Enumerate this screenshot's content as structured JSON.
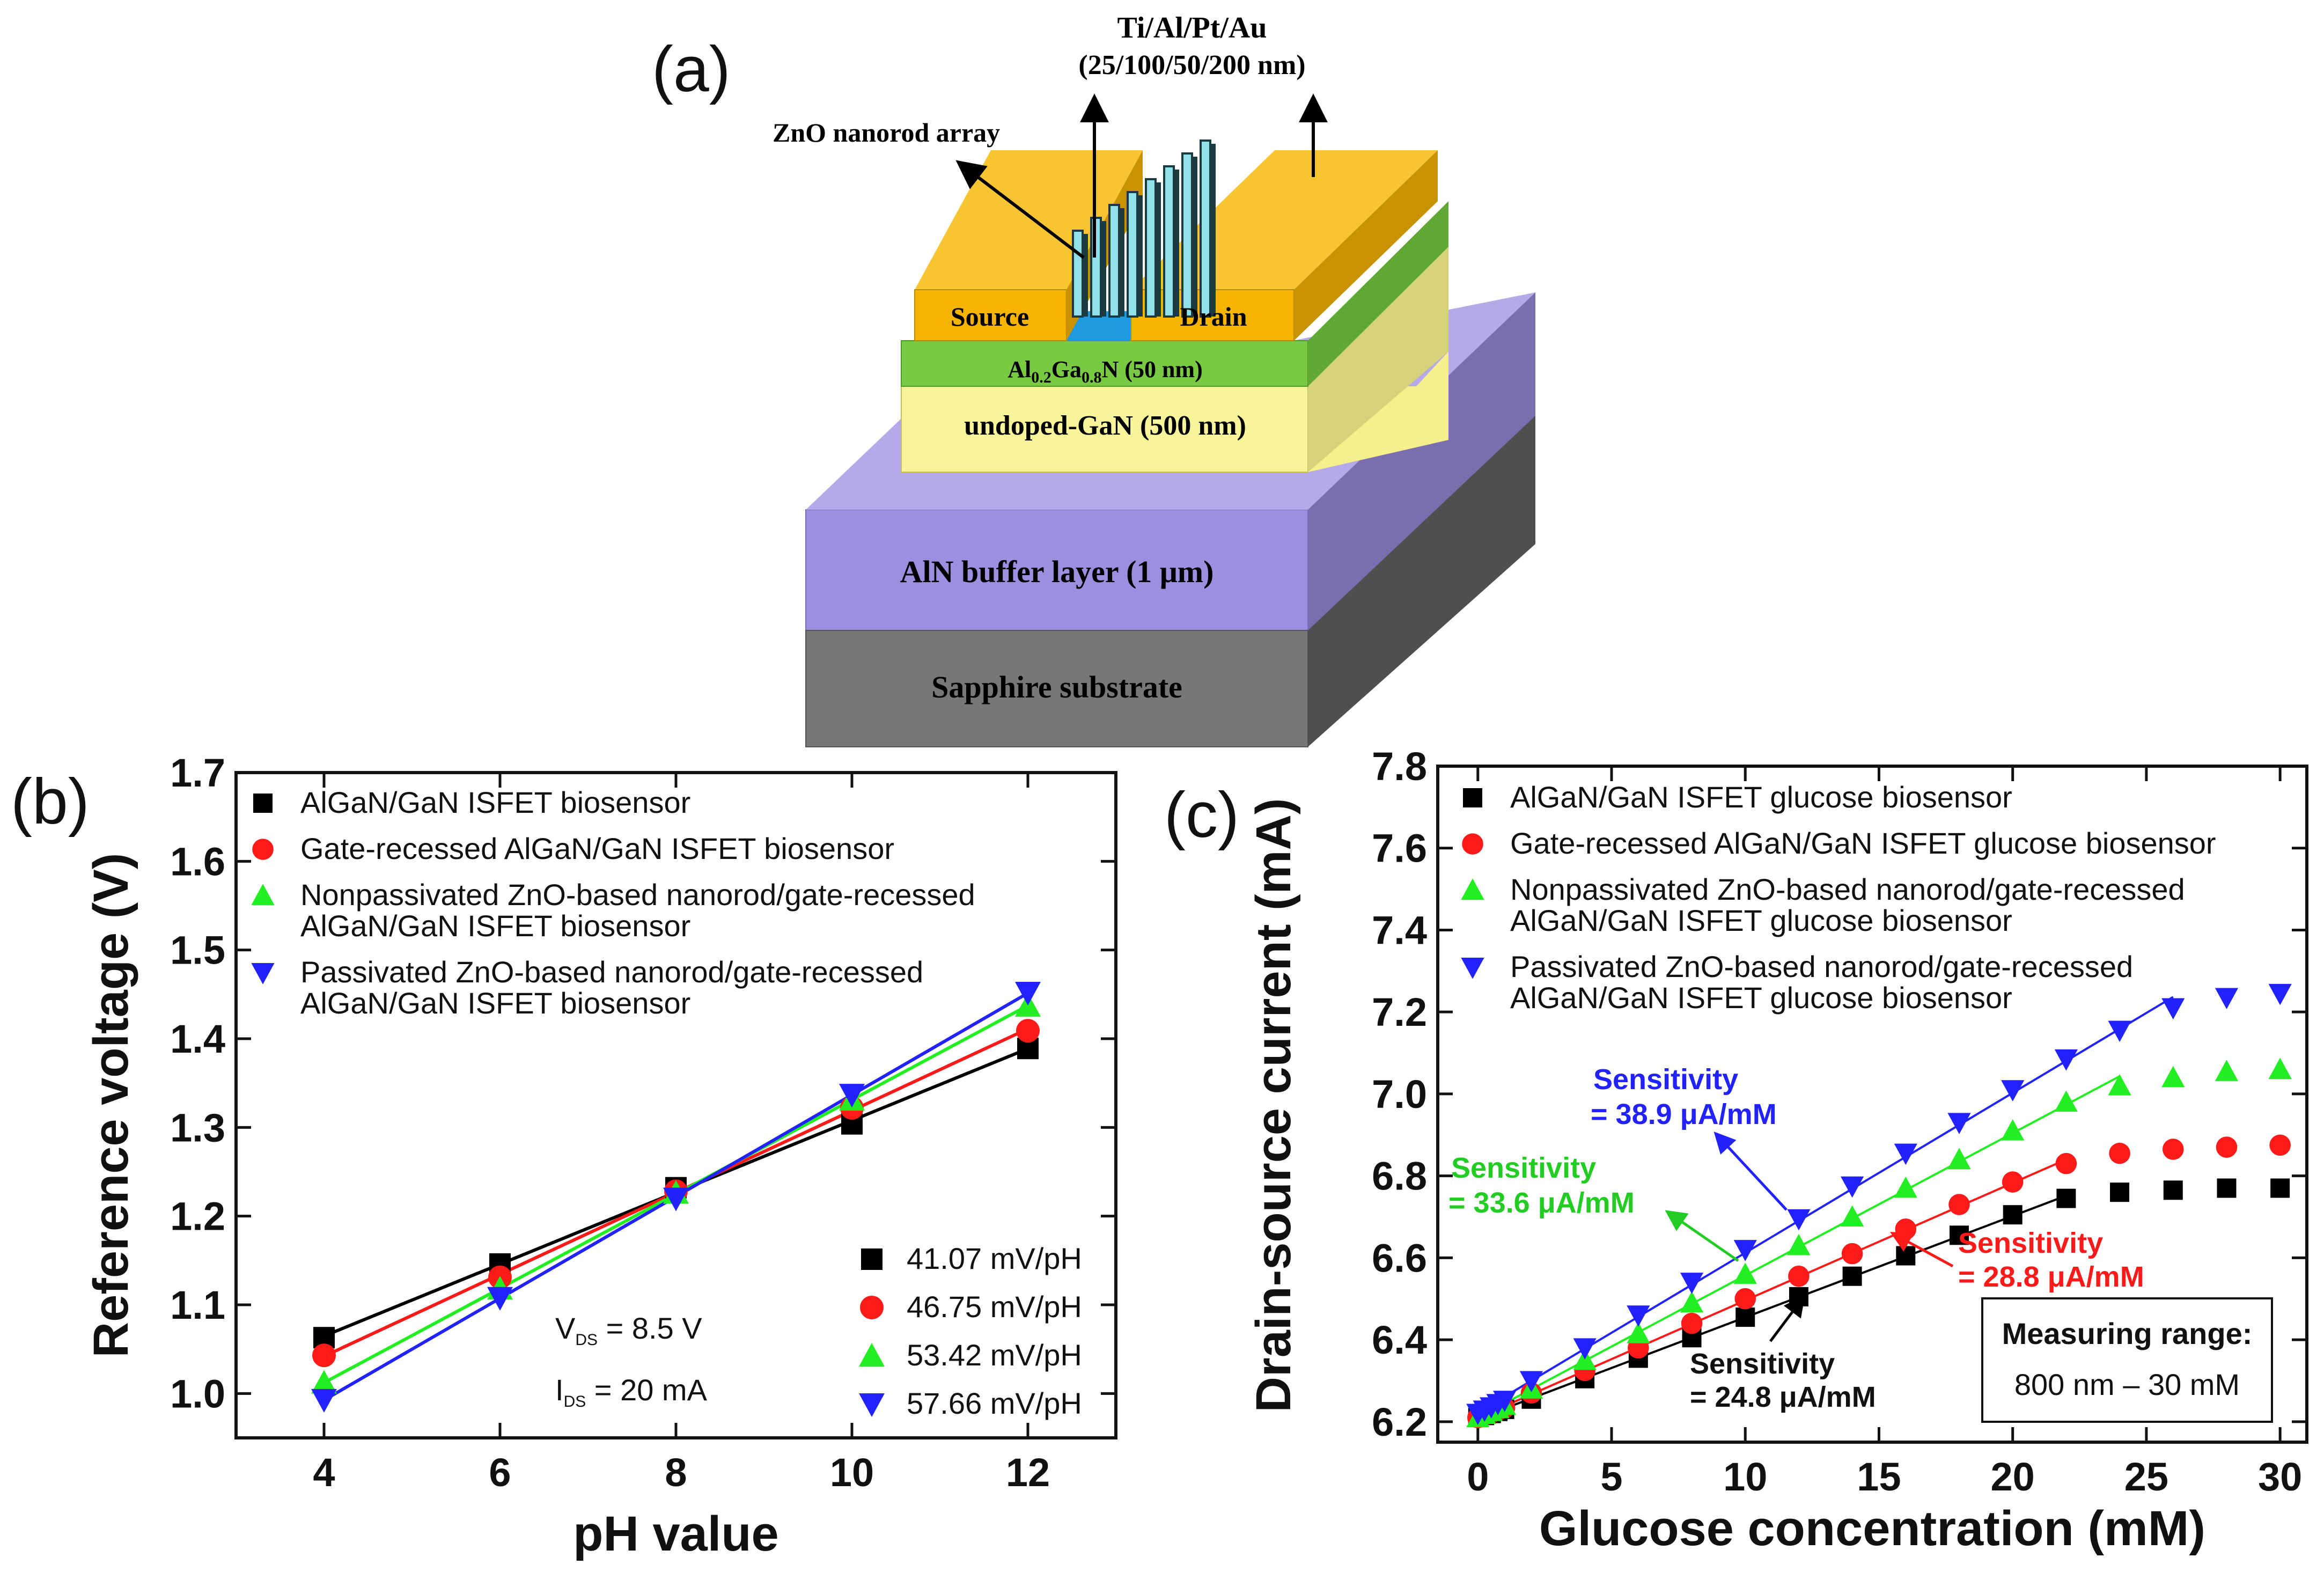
{
  "panels": {
    "a": "(a)",
    "b": "(b)",
    "c": "(c)"
  },
  "device": {
    "metal_stack": "Ti/Al/Pt/Au",
    "metal_thickness": "(25/100/50/200 nm)",
    "nanorod_label": "ZnO nanorod array",
    "source": "Source",
    "drain": "Drain",
    "barrier_main": "Al",
    "barrier_sub1": "0.2",
    "barrier_mid": "Ga",
    "barrier_sub2": "0.8",
    "barrier_end": "N (50 nm)",
    "gan": "undoped-GaN (500 nm)",
    "aln": "AlN buffer layer (1 μm)",
    "sapphire": "Sapphire substrate",
    "colors": {
      "metal": "#f4b400",
      "algan": "#7ac943",
      "gan": "#f5f08c",
      "aln": "#a99ad8",
      "sapphire": "#6b6b6b",
      "gate": "#1e9be0",
      "nanorod": "#8fe0e8"
    }
  },
  "chart_data": [
    {
      "type": "scatter",
      "panel": "b",
      "xlabel": "pH value",
      "ylabel": "Reference voltage (V)",
      "xlim": [
        3,
        13
      ],
      "ylim": [
        0.95,
        1.7
      ],
      "xticks": [
        "4",
        "6",
        "8",
        "10",
        "12"
      ],
      "yticks": [
        "1.0",
        "1.1",
        "1.2",
        "1.3",
        "1.4",
        "1.5",
        "1.6",
        "1.7"
      ],
      "x": [
        4,
        6,
        8,
        10,
        12
      ],
      "legend": "top-left",
      "series": [
        {
          "name": "AlGaN/GaN ISFET biosensor",
          "sensitivity": "41.07 mV/pH",
          "marker": "square",
          "color": "#000000",
          "values": [
            1.063,
            1.146,
            1.232,
            1.304,
            1.389
          ]
        },
        {
          "name": "Gate-recessed AlGaN/GaN ISFET biosensor",
          "sensitivity": "46.75 mV/pH",
          "marker": "circle",
          "color": "#ff1a1a",
          "values": [
            1.043,
            1.131,
            1.228,
            1.322,
            1.409
          ]
        },
        {
          "name_line1": "Nonpassivated ZnO-based nanorod/gate-recessed",
          "name_line2": "AlGaN/GaN ISFET biosensor",
          "sensitivity": "53.42 mV/pH",
          "marker": "triangle",
          "color": "#22ee22",
          "values": [
            1.012,
            1.118,
            1.226,
            1.331,
            1.437
          ]
        },
        {
          "name_line1": "Passivated ZnO-based nanorod/gate-recessed",
          "name_line2": "AlGaN/GaN ISFET biosensor",
          "sensitivity": "57.66 mV/pH",
          "marker": "triangle-down",
          "color": "#2222ff",
          "values": [
            0.993,
            1.108,
            1.22,
            1.337,
            1.452
          ]
        }
      ],
      "annotations": {
        "vds_main": "V",
        "vds_sub": "DS",
        "vds_value": " = 8.5 V",
        "ids_main": "I",
        "ids_sub": "DS",
        "ids_value": " = 20 mA"
      }
    },
    {
      "type": "scatter",
      "panel": "c",
      "xlabel": "Glucose concentration (mM)",
      "ylabel": "Drain-source current (mA)",
      "xlim": [
        -1.5,
        31
      ],
      "ylim": [
        6.15,
        7.8
      ],
      "xticks": [
        "0",
        "5",
        "10",
        "15",
        "20",
        "25",
        "30"
      ],
      "yticks": [
        "6.2",
        "6.4",
        "6.6",
        "6.8",
        "7.0",
        "7.2",
        "7.4",
        "7.6",
        "7.8"
      ],
      "x": [
        0,
        0.25,
        0.5,
        0.75,
        1,
        2,
        4,
        6,
        8,
        10,
        12,
        14,
        16,
        18,
        20,
        22,
        24,
        26,
        28,
        30
      ],
      "legend": "top-left",
      "series": [
        {
          "name": "AlGaN/GaN ISFET glucose biosensor",
          "marker": "square",
          "color": "#000000",
          "values": [
            6.21,
            6.215,
            6.22,
            6.225,
            6.23,
            6.255,
            6.305,
            6.355,
            6.405,
            6.455,
            6.505,
            6.555,
            6.605,
            6.655,
            6.705,
            6.745,
            6.76,
            6.765,
            6.77,
            6.77
          ]
        },
        {
          "name": "Gate-recessed AlGaN/GaN ISFET glucose biosensor",
          "marker": "circle",
          "color": "#ff1a1a",
          "values": [
            6.21,
            6.216,
            6.222,
            6.228,
            6.234,
            6.27,
            6.325,
            6.38,
            6.44,
            6.5,
            6.555,
            6.61,
            6.67,
            6.73,
            6.785,
            6.83,
            6.855,
            6.865,
            6.87,
            6.875
          ]
        },
        {
          "name_line1": "Nonpassivated ZnO-based nanorod/gate-recessed",
          "name_line2": "AlGaN/GaN ISFET glucose biosensor",
          "marker": "triangle",
          "color": "#22ee22",
          "values": [
            6.21,
            6.218,
            6.225,
            6.232,
            6.24,
            6.28,
            6.35,
            6.415,
            6.49,
            6.56,
            6.63,
            6.7,
            6.77,
            6.84,
            6.91,
            6.98,
            7.02,
            7.04,
            7.055,
            7.06
          ]
        },
        {
          "name_line1": "Passivated ZnO-based nanorod/gate-recessed",
          "name_line2": "AlGaN/GaN ISFET glucose biosensor",
          "marker": "triangle-down",
          "color": "#2222ff",
          "values": [
            6.22,
            6.228,
            6.236,
            6.244,
            6.252,
            6.3,
            6.38,
            6.46,
            6.54,
            6.62,
            6.695,
            6.775,
            6.855,
            6.93,
            7.01,
            7.085,
            7.155,
            7.21,
            7.235,
            7.245
          ]
        }
      ],
      "annotations": {
        "blue_line1": "Sensitivity",
        "blue_line2": "= 38.9 μA/mM",
        "green_line1": "Sensitivity",
        "green_line2": "= 33.6 μA/mM",
        "red_line1": "Sensitivity",
        "red_line2": "= 28.8 μA/mM",
        "black_line1": "Sensitivity",
        "black_line2": "= 24.8 μA/mM",
        "range_title": "Measuring range:",
        "range_value": "800 nm – 30 mM"
      }
    }
  ]
}
